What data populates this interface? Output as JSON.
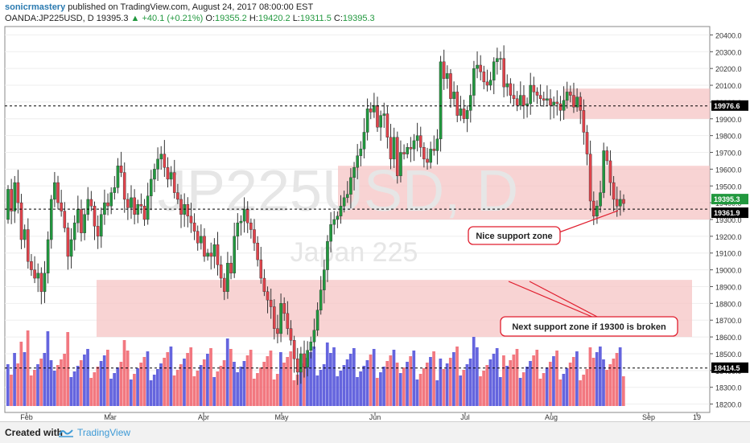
{
  "header": {
    "author": "sonicrmastery",
    "published": "published on TradingView.com, August 24, 2017 08:00:00 EST",
    "symbol": "OANDA:JP225USD, D",
    "last": "19395.3",
    "change": "+40.1 (+0.21%)",
    "o_label": "O:",
    "o_value": "19355.2",
    "h_label": "H:",
    "h_value": "19420.2",
    "l_label": "L:",
    "l_value": "19311.5",
    "c_label": "C:",
    "c_value": "19395.3"
  },
  "watermark": {
    "symbol": "JP225USD, D",
    "name": "Japan 225"
  },
  "footer": {
    "created_with": "Created with",
    "brand": "TradingView"
  },
  "annotations": {
    "support": "Nice support zone",
    "next_support": "Next support zone if 19300 is broken"
  },
  "colors": {
    "up": "#21983e",
    "down": "#e0434b",
    "vol_up": "#4a4ad8",
    "vol_down": "#f0606a",
    "zone": "#f5c4c4",
    "accent": "#3d9ad6"
  },
  "chart_data": {
    "type": "candlestick",
    "title": "",
    "ylim": [
      18150,
      20450
    ],
    "y_ticks": [
      18200,
      18300,
      18400,
      18500,
      18600,
      18700,
      18800,
      18900,
      19000,
      19100,
      19200,
      19300,
      19400,
      19500,
      19600,
      19700,
      19800,
      19900,
      20000,
      20100,
      20200,
      20300,
      20400
    ],
    "x_ticks": [
      "Feb",
      "Mar",
      "Apr",
      "May",
      "Jun",
      "Jul",
      "Aug",
      "Sep",
      "19"
    ],
    "price_lines": [
      19976.6,
      19361.9,
      18414.5
    ],
    "price_labels": [
      "19976.6",
      "19395.3",
      "19361.9",
      "18414.5"
    ],
    "zones": [
      {
        "from": 19900,
        "to": 20080
      },
      {
        "from": 19300,
        "to": 19620
      },
      {
        "from": 18600,
        "to": 18940
      }
    ],
    "closes": [
      19480,
      19350,
      19520,
      19400,
      19180,
      19240,
      19050,
      19000,
      18950,
      18980,
      18870,
      18980,
      19180,
      19420,
      19520,
      19400,
      19350,
      19250,
      19080,
      19180,
      19280,
      19360,
      19220,
      19330,
      19420,
      19380,
      19260,
      19200,
      19330,
      19400,
      19380,
      19460,
      19490,
      19620,
      19580,
      19420,
      19370,
      19430,
      19330,
      19390,
      19380,
      19300,
      19440,
      19540,
      19600,
      19660,
      19690,
      19610,
      19540,
      19580,
      19460,
      19420,
      19330,
      19390,
      19320,
      19280,
      19230,
      19160,
      19200,
      19080,
      19100,
      19080,
      19150,
      19030,
      18950,
      18870,
      19040,
      18980,
      19200,
      19280,
      19290,
      19360,
      19280,
      19240,
      19160,
      19060,
      18950,
      18870,
      18820,
      18780,
      18650,
      18620,
      18800,
      18740,
      18650,
      18580,
      18470,
      18390,
      18500,
      18420,
      18520,
      18570,
      18640,
      18760,
      18880,
      19000,
      19170,
      19270,
      19300,
      19320,
      19380,
      19430,
      19450,
      19550,
      19610,
      19680,
      19720,
      19820,
      19960,
      19940,
      19980,
      19850,
      19920,
      19930,
      19790,
      19660,
      19790,
      19560,
      19700,
      19690,
      19730,
      19720,
      19770,
      19800,
      19730,
      19660,
      19640,
      19720,
      19710,
      19780,
      20240,
      20140,
      20170,
      20020,
      20060,
      19920,
      19960,
      19900,
      19950,
      20040,
      20200,
      20220,
      20180,
      20120,
      20100,
      20130,
      20240,
      20260,
      20260,
      20090,
      20110,
      20040,
      20020,
      19980,
      20040,
      19980,
      19990,
      20100,
      20060,
      20040,
      20020,
      20010,
      20020,
      19980,
      20000,
      19990,
      19950,
      20010,
      20060,
      20040,
      19970,
      20030,
      19950,
      19820,
      19690,
      19410,
      19320,
      19380,
      19460,
      19710,
      19650,
      19520,
      19420,
      19380,
      19420,
      19395.3
    ],
    "volume_approx_scale": "relative"
  }
}
